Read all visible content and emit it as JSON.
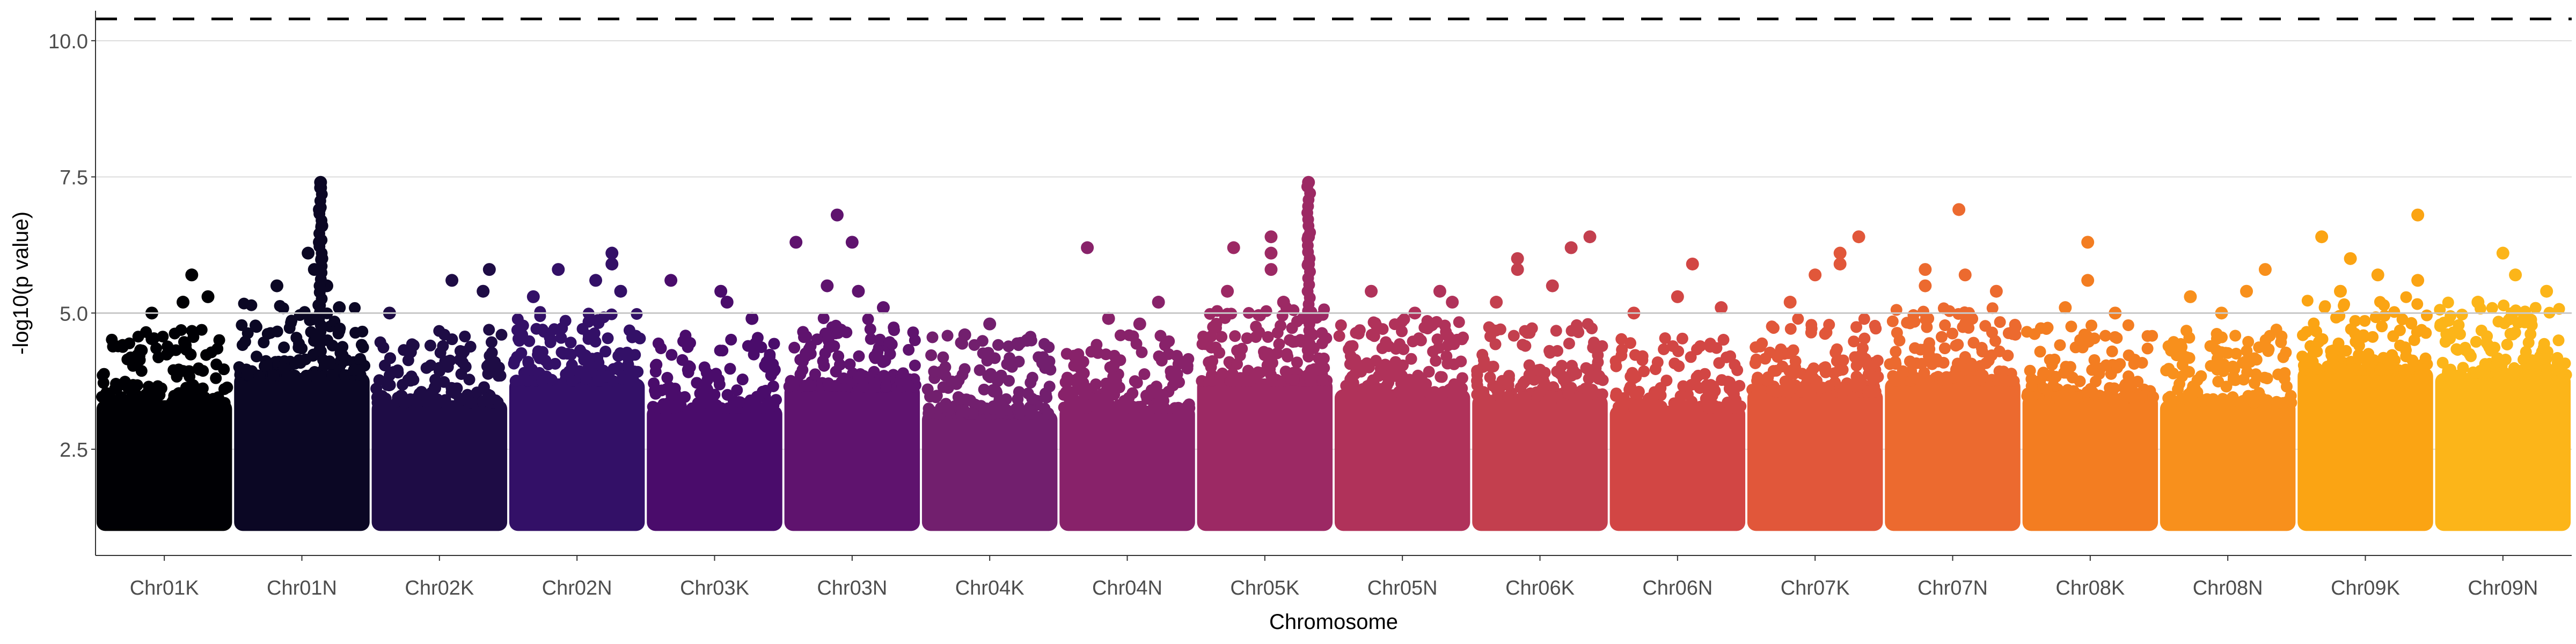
{
  "chart_data": {
    "type": "scatter",
    "title": "",
    "xlabel": "Chromosome",
    "ylabel": "-log10(p value)",
    "ylim": [
      0.55,
      10.55
    ],
    "yticks": [
      2.5,
      5.0,
      7.5,
      10.0
    ],
    "ytick_labels": [
      "2.5",
      "5.0",
      "7.5",
      "10.0"
    ],
    "grid": true,
    "reference_lines": [
      {
        "y": 10.4,
        "style": "dashed",
        "color": "#000000"
      },
      {
        "y": 5.0,
        "style": "solid",
        "color": "#c8c8c8"
      }
    ],
    "categories": [
      "Chr01K",
      "Chr01N",
      "Chr02K",
      "Chr02N",
      "Chr03K",
      "Chr03N",
      "Chr04K",
      "Chr04N",
      "Chr05K",
      "Chr05N",
      "Chr06K",
      "Chr06N",
      "Chr07K",
      "Chr07N",
      "Chr08K",
      "Chr08N",
      "Chr09K",
      "Chr09N"
    ],
    "colors": [
      "#000004",
      "#0b0724",
      "#1e0c45",
      "#331067",
      "#4a0c6b",
      "#5f136e",
      "#721f6e",
      "#88226a",
      "#9c2964",
      "#b0325a",
      "#c33f4e",
      "#d24644",
      "#e1573a",
      "#ec6a2f",
      "#f37d21",
      "#f8901c",
      "#fba413",
      "#fcb519"
    ],
    "series": [
      {
        "name": "Chr01K",
        "min": 1.0,
        "dense_top": 3.8,
        "peak": 5.7,
        "peak_x": 0.72,
        "highlights": [
          [
            0.65,
            5.2
          ],
          [
            0.72,
            5.7
          ],
          [
            0.4,
            5.0
          ],
          [
            0.85,
            5.3
          ]
        ]
      },
      {
        "name": "Chr01N",
        "min": 1.0,
        "dense_top": 4.3,
        "peak": 7.4,
        "peak_x": 0.65,
        "highlights": [
          [
            0.65,
            7.4
          ],
          [
            0.65,
            7.3
          ],
          [
            0.64,
            6.9
          ],
          [
            0.66,
            6.6
          ],
          [
            0.64,
            6.3
          ],
          [
            0.66,
            6.0
          ],
          [
            0.55,
            6.1
          ],
          [
            0.7,
            5.5
          ],
          [
            0.3,
            5.5
          ],
          [
            0.8,
            5.1
          ],
          [
            0.6,
            5.8
          ]
        ]
      },
      {
        "name": "Chr02K",
        "min": 1.0,
        "dense_top": 3.8,
        "peak": 5.8,
        "peak_x": 0.9,
        "highlights": [
          [
            0.9,
            5.8
          ],
          [
            0.6,
            5.6
          ],
          [
            0.85,
            5.4
          ],
          [
            0.1,
            5.0
          ]
        ]
      },
      {
        "name": "Chr02N",
        "min": 1.0,
        "dense_top": 4.2,
        "peak": 6.1,
        "peak_x": 0.78,
        "highlights": [
          [
            0.78,
            6.1
          ],
          [
            0.78,
            5.9
          ],
          [
            0.35,
            5.8
          ],
          [
            0.65,
            5.6
          ],
          [
            0.15,
            5.3
          ],
          [
            0.85,
            5.4
          ]
        ]
      },
      {
        "name": "Chr03K",
        "min": 1.0,
        "dense_top": 3.7,
        "peak": 5.6,
        "peak_x": 0.15,
        "highlights": [
          [
            0.15,
            5.6
          ],
          [
            0.55,
            5.4
          ],
          [
            0.6,
            5.2
          ],
          [
            0.8,
            4.9
          ]
        ]
      },
      {
        "name": "Chr03N",
        "min": 1.0,
        "dense_top": 4.1,
        "peak": 6.8,
        "peak_x": 0.38,
        "highlights": [
          [
            0.38,
            6.8
          ],
          [
            0.05,
            6.3
          ],
          [
            0.5,
            6.3
          ],
          [
            0.3,
            5.5
          ],
          [
            0.55,
            5.4
          ],
          [
            0.75,
            5.1
          ]
        ]
      },
      {
        "name": "Chr04K",
        "min": 1.0,
        "dense_top": 3.6,
        "peak": 4.8,
        "peak_x": 0.5,
        "highlights": [
          [
            0.5,
            4.8
          ],
          [
            0.3,
            4.6
          ],
          [
            0.8,
            4.5
          ]
        ]
      },
      {
        "name": "Chr04N",
        "min": 1.0,
        "dense_top": 3.7,
        "peak": 6.2,
        "peak_x": 0.18,
        "highlights": [
          [
            0.18,
            6.2
          ],
          [
            0.35,
            4.9
          ],
          [
            0.75,
            5.2
          ],
          [
            0.6,
            4.8
          ]
        ]
      },
      {
        "name": "Chr05K",
        "min": 1.0,
        "dense_top": 4.2,
        "peak": 7.4,
        "peak_x": 0.85,
        "highlights": [
          [
            0.85,
            7.4
          ],
          [
            0.55,
            6.4
          ],
          [
            0.85,
            6.4
          ],
          [
            0.55,
            6.1
          ],
          [
            0.25,
            6.2
          ],
          [
            0.55,
            5.8
          ],
          [
            0.85,
            5.9
          ],
          [
            0.2,
            5.4
          ],
          [
            0.65,
            5.2
          ]
        ]
      },
      {
        "name": "Chr05N",
        "min": 1.0,
        "dense_top": 4.0,
        "peak": 5.4,
        "peak_x": 0.25,
        "highlights": [
          [
            0.25,
            5.4
          ],
          [
            0.8,
            5.4
          ],
          [
            0.6,
            5.0
          ],
          [
            0.9,
            5.2
          ]
        ]
      },
      {
        "name": "Chr06K",
        "min": 1.0,
        "dense_top": 3.9,
        "peak": 6.4,
        "peak_x": 0.9,
        "highlights": [
          [
            0.9,
            6.4
          ],
          [
            0.32,
            6.0
          ],
          [
            0.75,
            6.2
          ],
          [
            0.32,
            5.8
          ],
          [
            0.6,
            5.5
          ],
          [
            0.15,
            5.2
          ]
        ]
      },
      {
        "name": "Chr06N",
        "min": 1.0,
        "dense_top": 3.7,
        "peak": 5.9,
        "peak_x": 0.62,
        "highlights": [
          [
            0.62,
            5.9
          ],
          [
            0.5,
            5.3
          ],
          [
            0.85,
            5.1
          ],
          [
            0.15,
            5.0
          ]
        ]
      },
      {
        "name": "Chr07K",
        "min": 1.0,
        "dense_top": 4.0,
        "peak": 6.4,
        "peak_x": 0.85,
        "highlights": [
          [
            0.85,
            6.4
          ],
          [
            0.7,
            6.1
          ],
          [
            0.7,
            5.9
          ],
          [
            0.5,
            5.7
          ],
          [
            0.3,
            5.2
          ]
        ]
      },
      {
        "name": "Chr07N",
        "min": 1.0,
        "dense_top": 4.2,
        "peak": 6.9,
        "peak_x": 0.55,
        "highlights": [
          [
            0.55,
            6.9
          ],
          [
            0.28,
            5.8
          ],
          [
            0.28,
            5.5
          ],
          [
            0.6,
            5.7
          ],
          [
            0.85,
            5.4
          ]
        ]
      },
      {
        "name": "Chr08K",
        "min": 1.0,
        "dense_top": 3.9,
        "peak": 6.3,
        "peak_x": 0.48,
        "highlights": [
          [
            0.48,
            6.3
          ],
          [
            0.48,
            5.6
          ],
          [
            0.3,
            5.1
          ],
          [
            0.7,
            5.0
          ]
        ]
      },
      {
        "name": "Chr08N",
        "min": 1.0,
        "dense_top": 3.8,
        "peak": 5.8,
        "peak_x": 0.8,
        "highlights": [
          [
            0.8,
            5.8
          ],
          [
            0.65,
            5.4
          ],
          [
            0.2,
            5.3
          ],
          [
            0.45,
            5.0
          ]
        ]
      },
      {
        "name": "Chr09K",
        "min": 1.0,
        "dense_top": 4.4,
        "peak": 6.8,
        "peak_x": 0.92,
        "highlights": [
          [
            0.92,
            6.8
          ],
          [
            0.15,
            6.4
          ],
          [
            0.38,
            6.0
          ],
          [
            0.92,
            5.6
          ],
          [
            0.6,
            5.7
          ],
          [
            0.3,
            5.4
          ]
        ]
      },
      {
        "name": "Chr09N",
        "min": 1.0,
        "dense_top": 4.3,
        "peak": 6.1,
        "peak_x": 0.5,
        "highlights": [
          [
            0.5,
            6.1
          ],
          [
            0.6,
            5.7
          ],
          [
            0.85,
            5.4
          ],
          [
            0.3,
            5.2
          ]
        ]
      }
    ]
  }
}
